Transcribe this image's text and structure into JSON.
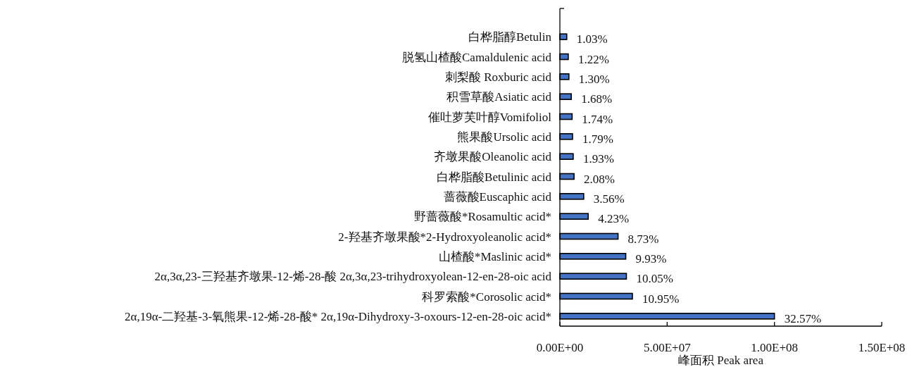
{
  "chart_data": {
    "type": "bar",
    "orientation": "horizontal",
    "xlabel": "峰面积 Peak area",
    "categories": [
      "白桦脂醇Betulin",
      "脱氢山楂酸Camaldulenic acid",
      "刺梨酸 Roxburic acid",
      "积雪草酸Asiatic acid",
      "催吐萝芙叶醇Vomifoliol",
      "熊果酸Ursolic acid",
      "齐墩果酸Oleanolic acid",
      "白桦脂酸Betulinic acid",
      "蔷薇酸Euscaphic acid",
      "野蔷薇酸*Rosamultic acid*",
      "2-羟基齐墩果酸*2-Hydroxyoleanolic acid*",
      "山楂酸*Maslinic acid*",
      "2α,3α,23-三羟基齐墩果-12-烯-28-酸 2α,3α,23-trihydroxyolean-12-en-28-oic acid",
      "科罗索酸*Corosolic acid*",
      "2α,19α-二羟基-3-氧熊果-12-烯-28-酸* 2α,19α-Dihydroxy-3-oxours-12-en-28-oic acid*"
    ],
    "values": [
      3200000.0,
      3900000.0,
      4200000.0,
      5300000.0,
      5700000.0,
      5900000.0,
      6200000.0,
      6600000.0,
      11100000.0,
      13200000.0,
      27100000.0,
      30700000.0,
      31000000.0,
      33800000.0,
      100000000.0
    ],
    "annotations": [
      {
        "text": "1.03%",
        "x": 3200000.0,
        "y": "白桦脂醇Betulin"
      },
      {
        "text": "1.22%",
        "x": 3900000.0,
        "y": "脱氢山楂酸Camaldulenic acid"
      },
      {
        "text": "1.30%",
        "x": 4200000.0,
        "y": "刺梨酸 Roxburic acid"
      },
      {
        "text": "1.68%",
        "x": 5300000.0,
        "y": "积雪草酸Asiatic acid"
      },
      {
        "text": "1.74%",
        "x": 5700000.0,
        "y": "催吐萝芙叶醇Vomifoliol"
      },
      {
        "text": "1.79%",
        "x": 5900000.0,
        "y": "熊果酸Ursolic acid"
      },
      {
        "text": "1.93%",
        "x": 6200000.0,
        "y": "齐墩果酸Oleanolic acid"
      },
      {
        "text": "2.08%",
        "x": 6600000.0,
        "y": "白桦脂酸Betulinic acid"
      },
      {
        "text": "3.56%",
        "x": 11100000.0,
        "y": "蔷薇酸Euscaphic acid"
      },
      {
        "text": "4.23%",
        "x": 13200000.0,
        "y": "野蔷薇酸*Rosamultic acid*"
      },
      {
        "text": "8.73%",
        "x": 27100000.0,
        "y": "2-羟基齐墩果酸*2-Hydroxyoleanolic acid*"
      },
      {
        "text": "9.93%",
        "x": 30700000.0,
        "y": "山楂酸*Maslinic acid*"
      },
      {
        "text": "10.05%",
        "x": 31000000.0,
        "y": "2α,3α,23-三羟基齐墩果-12-烯-28-酸 2α,3α,23-trihydroxyolean-12-en-28-oic acid"
      },
      {
        "text": "10.95%",
        "x": 33800000.0,
        "y": "科罗索酸*Corosolic acid*"
      },
      {
        "text": "32.57%",
        "x": 100000000.0,
        "y": "2α,19α-二羟基-3-氧熊果-12-烯-28-酸* 2α,19α-Dihydroxy-3-oxours-12-en-28-oic acid*"
      }
    ],
    "color": "#4472c4",
    "xlim": [
      0,
      150000000.0
    ],
    "xticks": [
      {
        "value": 0,
        "label": "0.00E+00"
      },
      {
        "value": 50000000.0,
        "label": "5.00E+07"
      },
      {
        "value": 100000000.0,
        "label": "1.00E+08"
      },
      {
        "value": 150000000.0,
        "label": "1.50E+08"
      }
    ]
  }
}
